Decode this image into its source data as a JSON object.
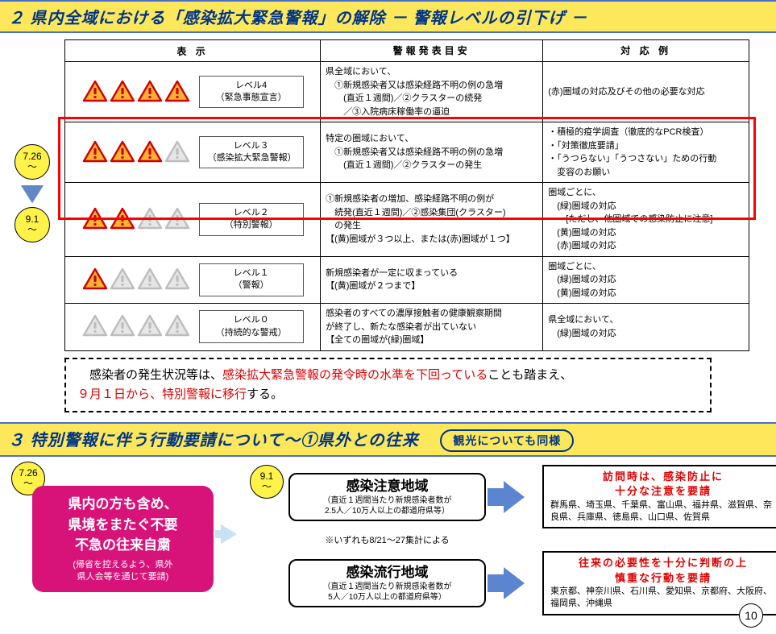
{
  "section2": {
    "title": "２ 県内全域における「感染拡大緊急警報」の解除 － 警報レベルの引下げ －",
    "headers": {
      "display": "表 示",
      "criteria": "警報発表目安",
      "response": "対 応 例"
    },
    "dates": {
      "from": "7.26",
      "to": "9.1",
      "tilde": "～"
    },
    "levels": [
      {
        "triangles": [
          "red",
          "red",
          "red",
          "red"
        ],
        "level_name": "レベル4",
        "level_sub": "（緊急事態宣言）",
        "criteria": "県全域において、\n　①新規感染者又は感染経路不明の例の急増\n　　(直近１週間)／②クラスターの続発\n　　／③入院病床稼働率の逼迫",
        "response": "(赤)圏域の対応及びその他の必要な対応"
      },
      {
        "triangles": [
          "red",
          "red",
          "red",
          "gray"
        ],
        "level_name": "レベル３",
        "level_sub": "（感染拡大緊急警報）",
        "criteria": "特定の圏域において、\n　①新規感染者又は感染経路不明の例の急増\n　　(直近１週間)／②クラスターの発生",
        "response": "・積極的疫学調査（徹底的なPCR検査）\n・「対策徹底要請」\n・「うつらない」「うつさない」ための行動\n　変容のお願い"
      },
      {
        "triangles": [
          "red",
          "red",
          "gray",
          "gray"
        ],
        "level_name": "レベル２",
        "level_sub": "（特別警報）",
        "criteria": "①新規感染者の増加、感染経路不明の例が\n　続発(直近１週間)／②感染集団(クラスター)\n　の発生\n【(黄)圏域が３つ以上、または(赤)圏域が１つ】",
        "response": "圏域ごとに、\n　(緑)圏域の対応\n　　[ただし、他圏域での感染防止に注意]\n　(黄)圏域の対応\n　(赤)圏域の対応"
      },
      {
        "triangles": [
          "red",
          "gray",
          "gray",
          "gray"
        ],
        "level_name": "レベル１",
        "level_sub": "（警報）",
        "criteria": "新規感染者が一定に収まっている\n【(黄)圏域が２つまで】",
        "response": "圏域ごとに、\n　(緑)圏域の対応\n　(黄)圏域の対応"
      },
      {
        "triangles": [
          "gray",
          "gray",
          "gray",
          "gray"
        ],
        "level_name": "レベル０",
        "level_sub": "（持続的な警戒）",
        "criteria": "感染者のすべての濃厚接触者の健康観察期間\nが終了し、新たな感染者が出ていない\n【全ての圏域が(緑)圏域】",
        "response": "県全域において、\n　(緑)圏域の対応"
      }
    ],
    "note_pre": "　感染者の発生状況等は、",
    "note_red1": "感染拡大緊急警報の発令時の水準を下回っている",
    "note_mid": "ことも踏まえ、\n",
    "note_red2": "９月１日から、特別警報に移行",
    "note_post": "する。"
  },
  "section3": {
    "title": "３ 特別警報に伴う行動要請について～①県外との往来",
    "badge": "観光についても同様",
    "dates": {
      "from": "7.26",
      "to": "9.1",
      "tilde": "～"
    },
    "pink": {
      "main": "県内の方も含め、\n県境をまたぐ不要\n不急の往来自粛",
      "sub": "(帰省を控えるよう、県外\n県人会等を通じて要請)"
    },
    "caution_region": {
      "title": "感染注意地域",
      "sub": "（直近１週間当たり新規感染者数が\n2.5人／10万人以上の都道府県等）"
    },
    "epidemic_region": {
      "title": "感染流行地域",
      "sub": "（直近１週間当たり新規感染者数が\n5人／10万人以上の都道府県等）"
    },
    "note": "※いずれも8/21～27集計による",
    "caution_box": {
      "head": "訪問時は、感染防止に\n十分な注意を要請",
      "list": "群馬県、埼玉県、千葉県、富山県、福井県、滋賀県、奈良県、兵庫県、徳島県、山口県、佐賀県"
    },
    "epidemic_box": {
      "head": "往来の必要性を十分に判断の上\n慎重な行動を要請",
      "list": "東京都、神奈川県、石川県、愛知県、京都府、大阪府、福岡県、沖縄県"
    }
  },
  "page": "10"
}
